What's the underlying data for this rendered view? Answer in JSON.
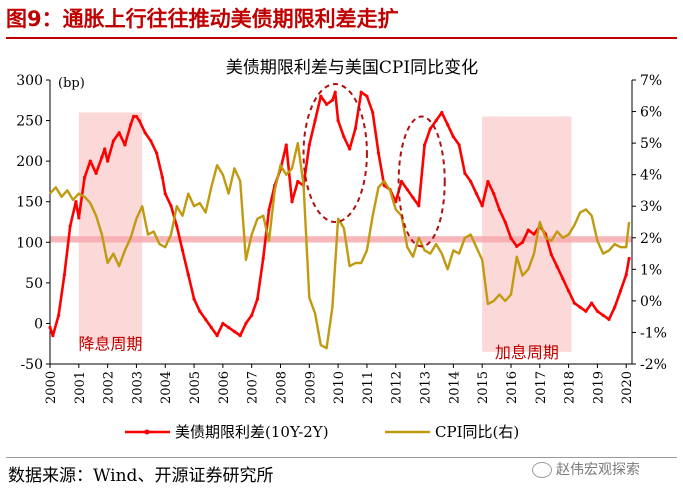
{
  "header": {
    "title": "图9：通胀上行往往推动美债期限利差走扩",
    "source": "数据来源：Wind、开源证券研究所",
    "watermark": "赵伟宏观探索"
  },
  "colors": {
    "spread": "#ff0000",
    "cpi": "#c09a10",
    "title": "#c00000",
    "shade": "#fcd9d9",
    "band": "#f6a9ae",
    "ellipse": "#b01010"
  },
  "chart_data": {
    "type": "line",
    "title": "美债期限利差与美国CPI同比变化",
    "left_unit": "(bp)",
    "x_ticks": [
      "2000",
      "2001",
      "2002",
      "2003",
      "2004",
      "2005",
      "2006",
      "2007",
      "2008",
      "2009",
      "2010",
      "2011",
      "2012",
      "2013",
      "2014",
      "2015",
      "2016",
      "2017",
      "2018",
      "2019",
      "2020"
    ],
    "xlim": [
      2000,
      2020.2
    ],
    "ylim_left": [
      -50,
      300
    ],
    "yticks_left": [
      "-50",
      "0",
      "50",
      "100",
      "150",
      "200",
      "250",
      "300"
    ],
    "ylim_right": [
      -2,
      7
    ],
    "yticks_right": [
      "-2%",
      "-1%",
      "0%",
      "1%",
      "2%",
      "3%",
      "4%",
      "5%",
      "6%",
      "7%"
    ],
    "shaded_periods": [
      {
        "label": "降息周期",
        "from": 2001.0,
        "to": 2003.2,
        "y_from": -25,
        "y_to": 260
      },
      {
        "label": "加息周期",
        "from": 2015.0,
        "to": 2018.1,
        "y_from": -35,
        "y_to": 255
      }
    ],
    "reference_band_right": {
      "from": 1.85,
      "to": 2.05
    },
    "highlight_ellipses": [
      {
        "x_center": 2009.9,
        "y_center": 210,
        "x_radius": 1.1,
        "y_radius": 85
      },
      {
        "x_center": 2012.9,
        "y_center": 175,
        "x_radius": 0.8,
        "y_radius": 80
      }
    ],
    "series": [
      {
        "name": "美债期限利差(10Y-2Y)",
        "axis": "left",
        "x": [
          2000.0,
          2000.1,
          2000.3,
          2000.5,
          2000.7,
          2000.9,
          2001.0,
          2001.2,
          2001.4,
          2001.6,
          2001.8,
          2001.9,
          2002.0,
          2002.2,
          2002.4,
          2002.6,
          2002.8,
          2002.9,
          2003.0,
          2003.1,
          2003.3,
          2003.5,
          2003.7,
          2003.9,
          2004.0,
          2004.2,
          2004.4,
          2004.6,
          2004.8,
          2005.0,
          2005.2,
          2005.4,
          2005.6,
          2005.8,
          2006.0,
          2006.2,
          2006.4,
          2006.6,
          2006.8,
          2007.0,
          2007.2,
          2007.4,
          2007.6,
          2007.8,
          2008.0,
          2008.2,
          2008.4,
          2008.6,
          2008.8,
          2009.0,
          2009.2,
          2009.4,
          2009.6,
          2009.8,
          2009.9,
          2010.0,
          2010.2,
          2010.4,
          2010.6,
          2010.8,
          2011.0,
          2011.2,
          2011.4,
          2011.6,
          2011.8,
          2012.0,
          2012.2,
          2012.4,
          2012.6,
          2012.8,
          2013.0,
          2013.2,
          2013.4,
          2013.6,
          2013.8,
          2014.0,
          2014.2,
          2014.4,
          2014.6,
          2014.8,
          2015.0,
          2015.2,
          2015.4,
          2015.6,
          2015.8,
          2016.0,
          2016.2,
          2016.4,
          2016.6,
          2016.8,
          2017.0,
          2017.2,
          2017.4,
          2017.6,
          2017.8,
          2018.0,
          2018.2,
          2018.4,
          2018.6,
          2018.8,
          2019.0,
          2019.2,
          2019.4,
          2019.6,
          2019.8,
          2020.0,
          2020.1
        ],
        "values": [
          -5,
          -15,
          10,
          60,
          120,
          150,
          130,
          180,
          200,
          185,
          205,
          215,
          200,
          225,
          235,
          220,
          245,
          255,
          255,
          250,
          235,
          225,
          210,
          180,
          160,
          145,
          120,
          90,
          60,
          30,
          15,
          5,
          -5,
          -15,
          0,
          -5,
          -10,
          -15,
          0,
          10,
          30,
          80,
          140,
          170,
          190,
          220,
          150,
          175,
          170,
          220,
          250,
          280,
          270,
          275,
          285,
          250,
          230,
          215,
          240,
          285,
          280,
          260,
          210,
          170,
          165,
          150,
          175,
          165,
          155,
          145,
          220,
          240,
          250,
          260,
          245,
          230,
          220,
          185,
          175,
          160,
          145,
          175,
          160,
          140,
          125,
          105,
          95,
          100,
          115,
          110,
          120,
          110,
          85,
          70,
          55,
          40,
          25,
          20,
          15,
          25,
          15,
          10,
          5,
          20,
          40,
          60,
          80
        ]
      },
      {
        "name": "CPI同比(右)",
        "axis": "right",
        "x": [
          2000.0,
          2000.2,
          2000.4,
          2000.6,
          2000.8,
          2001.0,
          2001.2,
          2001.4,
          2001.6,
          2001.8,
          2002.0,
          2002.2,
          2002.4,
          2002.6,
          2002.8,
          2003.0,
          2003.2,
          2003.4,
          2003.6,
          2003.8,
          2004.0,
          2004.2,
          2004.4,
          2004.6,
          2004.8,
          2005.0,
          2005.2,
          2005.4,
          2005.6,
          2005.8,
          2006.0,
          2006.2,
          2006.4,
          2006.6,
          2006.8,
          2007.0,
          2007.2,
          2007.4,
          2007.6,
          2007.8,
          2008.0,
          2008.2,
          2008.4,
          2008.6,
          2008.8,
          2009.0,
          2009.2,
          2009.4,
          2009.6,
          2009.8,
          2010.0,
          2010.2,
          2010.4,
          2010.6,
          2010.8,
          2011.0,
          2011.2,
          2011.4,
          2011.6,
          2011.8,
          2012.0,
          2012.2,
          2012.4,
          2012.6,
          2012.8,
          2013.0,
          2013.2,
          2013.4,
          2013.6,
          2013.8,
          2014.0,
          2014.2,
          2014.4,
          2014.6,
          2014.8,
          2015.0,
          2015.2,
          2015.4,
          2015.6,
          2015.8,
          2016.0,
          2016.2,
          2016.4,
          2016.6,
          2016.8,
          2017.0,
          2017.2,
          2017.4,
          2017.6,
          2017.8,
          2018.0,
          2018.2,
          2018.4,
          2018.6,
          2018.8,
          2019.0,
          2019.2,
          2019.4,
          2019.6,
          2019.8,
          2020.0,
          2020.1
        ],
        "values": [
          3.4,
          3.6,
          3.3,
          3.5,
          3.2,
          3.4,
          3.3,
          3.1,
          2.7,
          2.1,
          1.2,
          1.5,
          1.1,
          1.6,
          2.0,
          2.6,
          3.0,
          2.1,
          2.2,
          1.8,
          1.7,
          2.1,
          3.0,
          2.7,
          3.4,
          3.0,
          3.1,
          2.8,
          3.6,
          4.3,
          4.0,
          3.4,
          4.2,
          3.8,
          1.3,
          2.1,
          2.6,
          2.7,
          1.9,
          3.5,
          4.3,
          4.0,
          4.2,
          5.0,
          3.7,
          0.1,
          -0.4,
          -1.4,
          -1.5,
          -0.2,
          2.6,
          2.3,
          1.1,
          1.2,
          1.2,
          1.6,
          2.7,
          3.6,
          3.8,
          3.5,
          2.9,
          2.7,
          1.7,
          1.4,
          2.0,
          1.6,
          1.5,
          1.8,
          1.5,
          1.0,
          1.6,
          1.5,
          2.0,
          2.1,
          1.7,
          1.3,
          -0.1,
          0.0,
          0.2,
          0.0,
          0.2,
          1.4,
          0.8,
          1.0,
          1.5,
          2.5,
          2.0,
          1.9,
          2.2,
          2.0,
          2.1,
          2.4,
          2.8,
          2.9,
          2.7,
          1.9,
          1.5,
          1.6,
          1.8,
          1.7,
          1.7,
          2.5
        ]
      }
    ],
    "legend": [
      {
        "label": "美债期限利差(10Y-2Y)",
        "series": 0
      },
      {
        "label": "CPI同比(右)",
        "series": 1
      }
    ]
  }
}
